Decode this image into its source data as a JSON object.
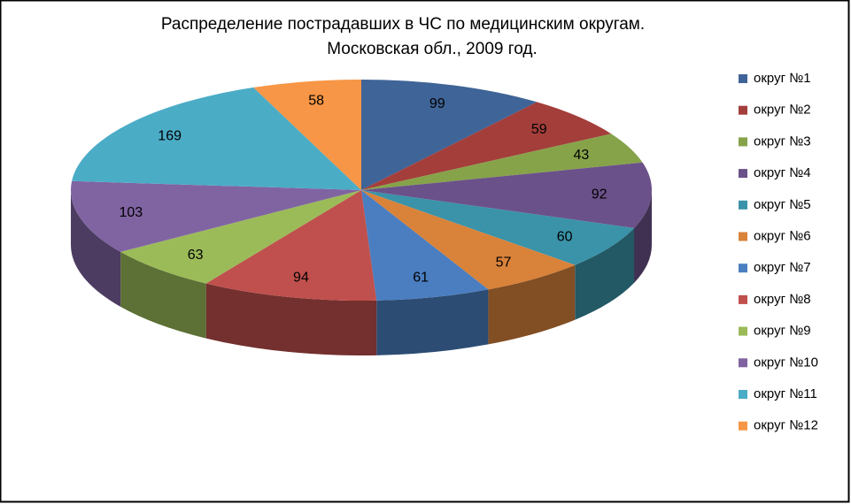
{
  "chart_data": {
    "type": "pie3d",
    "title": [
      "Распределение пострадавших в ЧС по медицинским округам.",
      "Московская обл., 2009 год."
    ],
    "categories": [
      "округ №1",
      "округ №2",
      "округ №3",
      "округ №4",
      "округ №5",
      "округ №6",
      "округ №7",
      "округ №8",
      "округ №9",
      "округ №10",
      "округ №11",
      "округ №12"
    ],
    "values": [
      99,
      59,
      43,
      92,
      60,
      57,
      61,
      94,
      63,
      103,
      169,
      58
    ],
    "colors": [
      "#3f6497",
      "#a33e3b",
      "#86a34a",
      "#6b5189",
      "#3a93a8",
      "#d9823a",
      "#4a7ec0",
      "#c0504d",
      "#9bbb59",
      "#8064a2",
      "#4bacc6",
      "#f79646"
    ],
    "legend": "right"
  }
}
